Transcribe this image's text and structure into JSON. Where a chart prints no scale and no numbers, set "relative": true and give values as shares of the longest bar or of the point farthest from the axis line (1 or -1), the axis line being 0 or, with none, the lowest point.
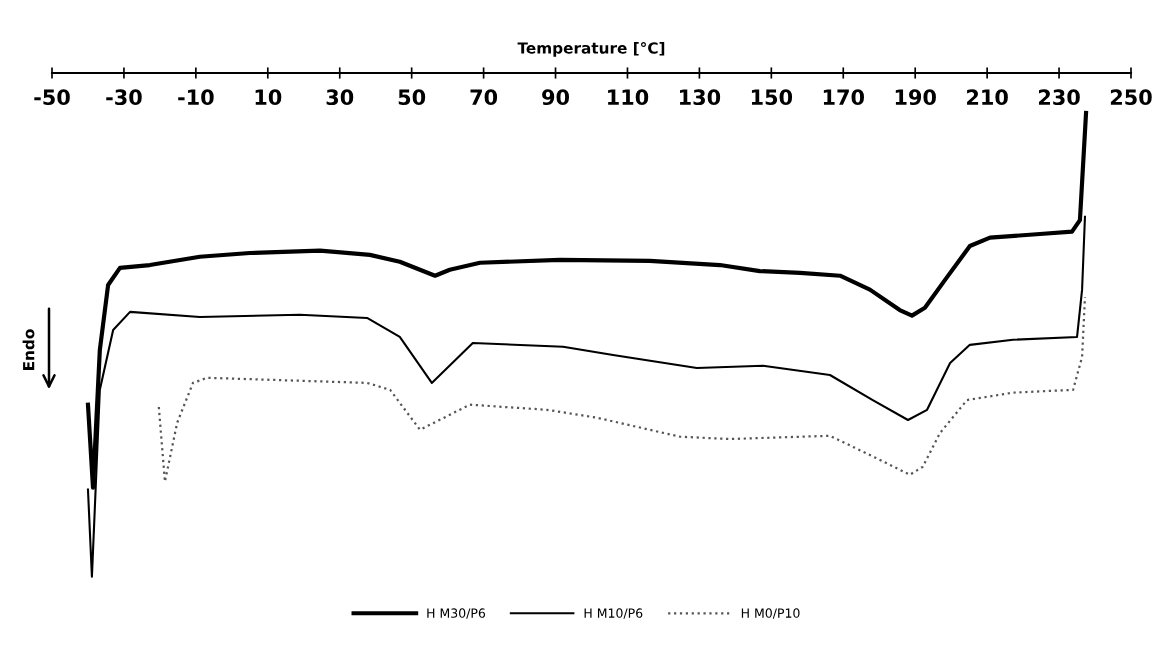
{
  "chart_data": {
    "type": "line",
    "xlabel": "Temperature [°C]",
    "relative": true,
    "xlim": [
      -50,
      250
    ],
    "xticks": [
      -50,
      -30,
      -10,
      10,
      30,
      50,
      70,
      90,
      110,
      130,
      150,
      170,
      190,
      210,
      230,
      250
    ],
    "legend": "bottom",
    "grid": false,
    "annotations": [
      "Endo"
    ],
    "series": [
      {
        "name": "H M30/P6",
        "color": "#000000",
        "line_style": "solid",
        "x": [
          -40.0,
          -38.6,
          -36.7,
          -34.4,
          -31.1,
          -22.8,
          -8.9,
          5.0,
          24.5,
          38.4,
          46.7,
          56.5,
          60.6,
          69.0,
          91.2,
          116.2,
          135.7,
          146.8,
          158.0,
          169.1,
          177.4,
          185.7,
          189.1,
          192.7,
          198.3,
          205.2,
          210.8,
          224.7,
          233.6,
          235.8,
          237.5
        ],
        "values": [
          0.371,
          0.192,
          0.489,
          0.629,
          0.666,
          0.672,
          0.69,
          0.698,
          0.703,
          0.694,
          0.679,
          0.649,
          0.662,
          0.677,
          0.683,
          0.681,
          0.672,
          0.659,
          0.655,
          0.649,
          0.619,
          0.575,
          0.563,
          0.58,
          0.64,
          0.713,
          0.731,
          0.739,
          0.744,
          0.769,
          1.0
        ]
      },
      {
        "name": "H M10/P6",
        "color": "#000000",
        "line_style": "solid",
        "x": [
          -40.0,
          -38.9,
          -36.7,
          -33.0,
          -28.3,
          -8.9,
          18.9,
          37.6,
          46.7,
          55.6,
          67.0,
          92.1,
          106.0,
          129.3,
          147.7,
          166.3,
          178.2,
          188.0,
          193.3,
          199.7,
          205.2,
          217.2,
          235.0,
          236.4,
          237.2
        ],
        "values": [
          0.188,
          0.0,
          0.403,
          0.532,
          0.571,
          0.56,
          0.565,
          0.558,
          0.517,
          0.418,
          0.504,
          0.496,
          0.478,
          0.45,
          0.455,
          0.435,
          0.381,
          0.338,
          0.36,
          0.461,
          0.5,
          0.511,
          0.517,
          0.619,
          0.776
        ]
      },
      {
        "name": "H M0/P10",
        "color": "#555555",
        "line_style": "dotted",
        "x": [
          -20.3,
          -18.6,
          -15.2,
          -10.8,
          -6.9,
          37.6,
          44.0,
          52.3,
          66.2,
          87.6,
          101.5,
          124.6,
          138.5,
          166.3,
          180.2,
          188.5,
          192.1,
          196.9,
          204.4,
          217.2,
          233.9,
          236.4,
          237.2
        ],
        "values": [
          0.366,
          0.205,
          0.332,
          0.418,
          0.429,
          0.418,
          0.403,
          0.317,
          0.371,
          0.36,
          0.343,
          0.302,
          0.297,
          0.304,
          0.252,
          0.22,
          0.237,
          0.31,
          0.381,
          0.397,
          0.403,
          0.474,
          0.603
        ]
      }
    ]
  }
}
